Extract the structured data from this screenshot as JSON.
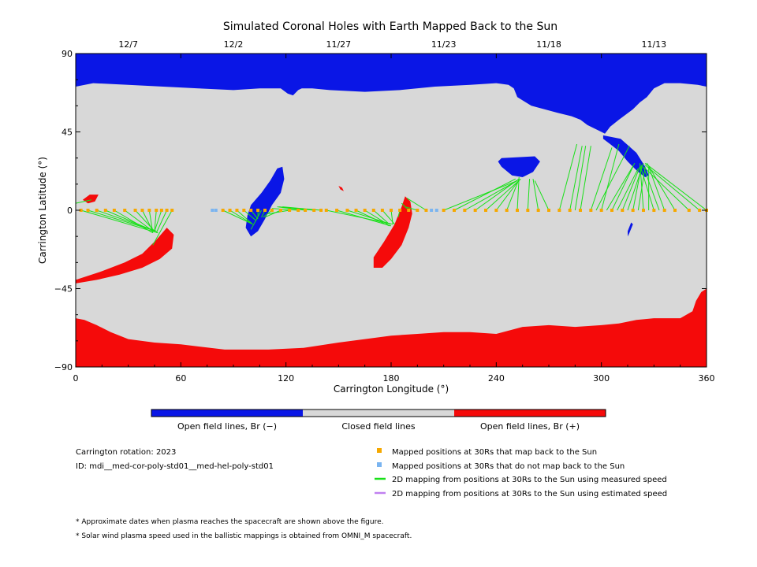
{
  "title": "Simulated Coronal Holes with Earth Mapped Back to the Sun",
  "colors": {
    "open_negative": "#0a16e6",
    "closed": "#d8d8d8",
    "open_positive": "#f50a0a",
    "mapped": "#f5a800",
    "unmapped": "#7ab4f0",
    "measured_line": "#18e018",
    "estimated_line": "#c080f0"
  },
  "colorbar": {
    "labels": [
      "Open field lines, Br (−)",
      "Closed field lines",
      "Open field lines, Br (+)"
    ]
  },
  "info": {
    "rotation": "Carrington rotation: 2023",
    "id": "ID: mdi__med-cor-poly-std01__med-hel-poly-std01"
  },
  "legend": [
    {
      "kind": "square",
      "color": "#f5a800",
      "label": "Mapped positions at 30Rs that map back to the Sun"
    },
    {
      "kind": "square",
      "color": "#7ab4f0",
      "label": "Mapped positions at 30Rs that do not map back to the Sun"
    },
    {
      "kind": "line",
      "color": "#18e018",
      "label": "2D mapping from positions at 30Rs to the Sun using measured speed"
    },
    {
      "kind": "line",
      "color": "#c080f0",
      "label": "2D mapping from positions at 30Rs to the Sun using estimated speed"
    }
  ],
  "notes": [
    "* Approximate dates when plasma reaches the spacecraft are shown above the figure.",
    "* Solar wind plasma speed used in the ballistic mappings is obtained from OMNI_M spacecraft."
  ],
  "chart_data": {
    "type": "scatter",
    "title": "Simulated Coronal Holes with Earth Mapped Back to the Sun",
    "xlabel": "Carrington Longitude (°)",
    "ylabel": "Carrington Latitude (°)",
    "xlim": [
      0,
      360
    ],
    "ylim": [
      -90,
      90
    ],
    "xticks": [
      0,
      60,
      120,
      180,
      240,
      300,
      360
    ],
    "yticks": [
      -90,
      -45,
      0,
      45,
      90
    ],
    "top_axis": {
      "label_positions": [
        30,
        90,
        150,
        210,
        270,
        330
      ],
      "labels": [
        "12/7",
        "12/2",
        "11/27",
        "11/23",
        "11/18",
        "11/13"
      ]
    },
    "regions": [
      {
        "name": "north polar hole",
        "polarity": "negative",
        "points": [
          [
            0,
            90
          ],
          [
            360,
            90
          ],
          [
            360,
            71
          ],
          [
            355,
            72
          ],
          [
            345,
            73
          ],
          [
            336,
            73
          ],
          [
            330,
            70
          ],
          [
            326,
            65
          ],
          [
            322,
            62
          ],
          [
            318,
            58
          ],
          [
            314,
            55
          ],
          [
            310,
            52
          ],
          [
            305,
            48
          ],
          [
            302,
            44
          ],
          [
            300,
            45
          ],
          [
            296,
            47
          ],
          [
            292,
            49
          ],
          [
            288,
            52
          ],
          [
            283,
            54
          ],
          [
            275,
            56
          ],
          [
            260,
            60
          ],
          [
            252,
            65
          ],
          [
            250,
            70
          ],
          [
            247,
            72
          ],
          [
            240,
            73
          ],
          [
            225,
            72
          ],
          [
            205,
            71
          ],
          [
            185,
            69
          ],
          [
            165,
            68
          ],
          [
            145,
            69
          ],
          [
            135,
            70
          ],
          [
            129,
            70
          ],
          [
            127,
            69
          ],
          [
            124,
            66
          ],
          [
            121,
            67
          ],
          [
            117,
            70
          ],
          [
            105,
            70
          ],
          [
            90,
            69
          ],
          [
            70,
            70
          ],
          [
            50,
            71
          ],
          [
            30,
            72
          ],
          [
            10,
            73
          ],
          [
            0,
            71
          ]
        ]
      },
      {
        "name": "north extension",
        "polarity": "negative",
        "points": [
          [
            301,
            43
          ],
          [
            311,
            41
          ],
          [
            320,
            33
          ],
          [
            325,
            25
          ],
          [
            327,
            20
          ],
          [
            325,
            19
          ],
          [
            321,
            22
          ],
          [
            315,
            28
          ],
          [
            310,
            34
          ],
          [
            305,
            38
          ],
          [
            301,
            41
          ]
        ]
      },
      {
        "name": "blob 255",
        "polarity": "negative",
        "points": [
          [
            243,
            30
          ],
          [
            262,
            31
          ],
          [
            265,
            28
          ],
          [
            261,
            22
          ],
          [
            255,
            19
          ],
          [
            249,
            20
          ],
          [
            243,
            25
          ],
          [
            241,
            28
          ]
        ]
      },
      {
        "name": "diagonal 115",
        "polarity": "negative",
        "points": [
          [
            100,
            -15
          ],
          [
            104,
            -12
          ],
          [
            108,
            -5
          ],
          [
            112,
            3
          ],
          [
            117,
            10
          ],
          [
            119,
            18
          ],
          [
            118,
            25
          ],
          [
            115,
            24
          ],
          [
            111,
            17
          ],
          [
            106,
            10
          ],
          [
            100,
            3
          ],
          [
            98,
            -3
          ],
          [
            97,
            -10
          ]
        ]
      },
      {
        "name": "sliver 315",
        "polarity": "negative",
        "points": [
          [
            315,
            -15
          ],
          [
            316,
            -13
          ],
          [
            318,
            -8
          ],
          [
            317,
            -7
          ],
          [
            315,
            -12
          ]
        ]
      },
      {
        "name": "south polar hole",
        "polarity": "positive",
        "points": [
          [
            0,
            -90
          ],
          [
            360,
            -90
          ],
          [
            360,
            -45
          ],
          [
            357,
            -47
          ],
          [
            354,
            -52
          ],
          [
            352,
            -58
          ],
          [
            345,
            -62
          ],
          [
            330,
            -62
          ],
          [
            320,
            -63
          ],
          [
            310,
            -65
          ],
          [
            300,
            -66
          ],
          [
            285,
            -67
          ],
          [
            270,
            -66
          ],
          [
            255,
            -67
          ],
          [
            240,
            -71
          ],
          [
            225,
            -70
          ],
          [
            210,
            -70
          ],
          [
            195,
            -71
          ],
          [
            180,
            -72
          ],
          [
            165,
            -74
          ],
          [
            150,
            -76
          ],
          [
            130,
            -79
          ],
          [
            110,
            -80
          ],
          [
            85,
            -80
          ],
          [
            60,
            -77
          ],
          [
            45,
            -76
          ],
          [
            30,
            -74
          ],
          [
            20,
            -70
          ],
          [
            12,
            -66
          ],
          [
            5,
            -63
          ],
          [
            0,
            -62
          ]
        ]
      },
      {
        "name": "southwest lobe",
        "polarity": "positive",
        "points": [
          [
            0,
            -40
          ],
          [
            15,
            -35
          ],
          [
            28,
            -30
          ],
          [
            38,
            -25
          ],
          [
            46,
            -17
          ],
          [
            52,
            -10
          ],
          [
            56,
            -14
          ],
          [
            55,
            -22
          ],
          [
            48,
            -28
          ],
          [
            38,
            -33
          ],
          [
            25,
            -37
          ],
          [
            12,
            -40
          ],
          [
            0,
            -42
          ]
        ]
      },
      {
        "name": "diagonal 190",
        "polarity": "positive",
        "points": [
          [
            170,
            -33
          ],
          [
            175,
            -33
          ],
          [
            180,
            -28
          ],
          [
            186,
            -20
          ],
          [
            190,
            -10
          ],
          [
            192,
            -2
          ],
          [
            191,
            5
          ],
          [
            188,
            8
          ],
          [
            186,
            2
          ],
          [
            182,
            -8
          ],
          [
            176,
            -18
          ],
          [
            170,
            -27
          ]
        ]
      },
      {
        "name": "small 10",
        "polarity": "positive",
        "points": [
          [
            4,
            6
          ],
          [
            8,
            9
          ],
          [
            13,
            9
          ],
          [
            11,
            5
          ],
          [
            7,
            4
          ]
        ]
      },
      {
        "name": "small 151",
        "polarity": "positive",
        "points": [
          [
            150,
            14
          ],
          [
            152,
            13
          ],
          [
            153,
            11
          ],
          [
            151,
            12
          ]
        ]
      }
    ],
    "mapped_positions": [
      [
        3,
        0
      ],
      [
        7,
        0
      ],
      [
        12,
        0
      ],
      [
        17,
        0
      ],
      [
        22,
        0
      ],
      [
        28,
        0
      ],
      [
        34,
        0
      ],
      [
        38,
        0
      ],
      [
        42,
        0
      ],
      [
        46,
        0
      ],
      [
        49,
        0
      ],
      [
        52,
        0
      ],
      [
        55,
        0
      ],
      [
        84,
        0
      ],
      [
        88,
        0
      ],
      [
        92,
        0
      ],
      [
        96,
        0
      ],
      [
        100,
        0
      ],
      [
        104,
        0
      ],
      [
        108,
        0
      ],
      [
        112,
        0
      ],
      [
        117,
        0
      ],
      [
        122,
        0
      ],
      [
        127,
        0
      ],
      [
        131,
        0
      ],
      [
        136,
        0
      ],
      [
        140,
        0
      ],
      [
        143,
        0
      ],
      [
        149,
        0
      ],
      [
        155,
        0
      ],
      [
        160,
        0
      ],
      [
        165,
        0
      ],
      [
        170,
        0
      ],
      [
        175,
        0
      ],
      [
        180,
        0
      ],
      [
        185,
        0
      ],
      [
        190,
        0
      ],
      [
        195,
        0
      ],
      [
        200,
        0
      ],
      [
        210,
        0
      ],
      [
        216,
        0
      ],
      [
        222,
        0
      ],
      [
        228,
        0
      ],
      [
        234,
        0
      ],
      [
        240,
        0
      ],
      [
        246,
        0
      ],
      [
        252,
        0
      ],
      [
        258,
        0
      ],
      [
        264,
        0
      ],
      [
        270,
        0
      ],
      [
        276,
        0
      ],
      [
        282,
        0
      ],
      [
        288,
        0
      ],
      [
        294,
        0
      ],
      [
        300,
        0
      ],
      [
        306,
        0
      ],
      [
        312,
        0
      ],
      [
        318,
        0
      ],
      [
        324,
        0
      ],
      [
        330,
        0
      ],
      [
        336,
        0
      ],
      [
        342,
        0
      ],
      [
        350,
        0
      ],
      [
        356,
        0
      ],
      [
        360,
        0
      ]
    ],
    "unmapped_positions": [
      [
        78,
        0
      ],
      [
        80,
        0
      ],
      [
        203,
        0
      ],
      [
        206,
        0
      ]
    ],
    "mapping_lines": [
      [
        3,
        0,
        47,
        -13
      ],
      [
        7,
        0,
        46,
        -12
      ],
      [
        12,
        0,
        46,
        -12
      ],
      [
        17,
        0,
        45,
        -12
      ],
      [
        22,
        0,
        44,
        -13
      ],
      [
        28,
        0,
        44,
        -12
      ],
      [
        34,
        0,
        45,
        -12
      ],
      [
        38,
        0,
        44,
        -12
      ],
      [
        42,
        0,
        44,
        -13
      ],
      [
        46,
        0,
        45,
        -12
      ],
      [
        49,
        0,
        45,
        -12
      ],
      [
        52,
        0,
        46,
        -13
      ],
      [
        55,
        0,
        44,
        -20
      ],
      [
        0,
        4,
        9,
        6
      ],
      [
        84,
        0,
        101,
        -8
      ],
      [
        88,
        0,
        101,
        -8
      ],
      [
        92,
        0,
        101,
        -8
      ],
      [
        96,
        0,
        103,
        -6
      ],
      [
        100,
        0,
        104,
        -5
      ],
      [
        104,
        0,
        104,
        -4
      ],
      [
        108,
        0,
        106,
        -4
      ],
      [
        112,
        0,
        107,
        -4
      ],
      [
        117,
        0,
        108,
        -4
      ],
      [
        122,
        0,
        110,
        -2
      ],
      [
        127,
        0,
        112,
        1
      ],
      [
        131,
        0,
        115,
        2
      ],
      [
        136,
        0,
        116,
        2
      ],
      [
        140,
        0,
        118,
        2
      ],
      [
        106,
        0,
        100,
        -11
      ],
      [
        143,
        0,
        181,
        -8
      ],
      [
        149,
        0,
        180,
        -9
      ],
      [
        155,
        0,
        180,
        -8
      ],
      [
        160,
        0,
        179,
        -9
      ],
      [
        165,
        0,
        178,
        -8
      ],
      [
        170,
        0,
        179,
        -8
      ],
      [
        175,
        0,
        182,
        -8
      ],
      [
        180,
        0,
        181,
        -8
      ],
      [
        185,
        0,
        184,
        -4
      ],
      [
        190,
        0,
        186,
        4
      ],
      [
        195,
        0,
        188,
        2
      ],
      [
        200,
        0,
        189,
        7
      ],
      [
        210,
        0,
        252,
        17
      ],
      [
        216,
        0,
        251,
        18
      ],
      [
        222,
        0,
        252,
        17
      ],
      [
        228,
        0,
        253,
        18
      ],
      [
        234,
        0,
        254,
        18
      ],
      [
        240,
        0,
        252,
        16
      ],
      [
        246,
        0,
        253,
        18
      ],
      [
        252,
        0,
        253,
        19
      ],
      [
        258,
        0,
        259,
        18
      ],
      [
        264,
        0,
        261,
        18
      ],
      [
        270,
        0,
        262,
        17
      ],
      [
        276,
        0,
        286,
        38
      ],
      [
        282,
        0,
        289,
        37
      ],
      [
        288,
        0,
        294,
        37
      ],
      [
        294,
        0,
        306,
        36
      ],
      [
        300,
        0,
        310,
        38
      ],
      [
        306,
        0,
        318,
        25
      ],
      [
        312,
        0,
        322,
        25
      ],
      [
        318,
        0,
        323,
        26
      ],
      [
        324,
        0,
        322,
        27
      ],
      [
        330,
        0,
        322,
        26
      ],
      [
        336,
        0,
        327,
        25
      ],
      [
        342,
        0,
        326,
        27
      ],
      [
        350,
        0,
        325,
        24
      ],
      [
        356,
        0,
        325,
        26
      ],
      [
        360,
        0,
        325,
        27
      ],
      [
        285,
        0,
        291,
        37
      ],
      [
        297,
        0,
        316,
        37
      ],
      [
        303,
        0,
        319,
        27
      ],
      [
        309,
        0,
        321,
        24
      ],
      [
        315,
        0,
        324,
        27
      ],
      [
        321,
        0,
        325,
        25
      ],
      [
        327,
        0,
        327,
        25
      ],
      [
        333,
        0,
        324,
        25
      ]
    ]
  }
}
